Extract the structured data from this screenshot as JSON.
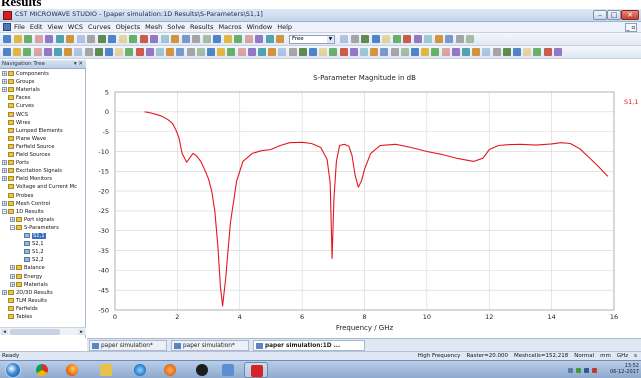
{
  "document_heading": "Results",
  "window": {
    "title": "CST MICROWAVE STUDIO - [paper simulation:1D Results\\S-Parameters\\S1,1]",
    "controls": {
      "minimize": "–",
      "maximize": "□",
      "close": "✕"
    }
  },
  "menu": {
    "items": [
      "File",
      "Edit",
      "View",
      "WCS",
      "Curves",
      "Objects",
      "Mesh",
      "Solve",
      "Results",
      "Macros",
      "Window",
      "Help"
    ],
    "restore_glyph": "_ ▫"
  },
  "toolbar": {
    "combo_value": "Free"
  },
  "navigation_tree": {
    "title": "Navigation Tree",
    "title_controls": "▾ ✕",
    "items": [
      {
        "label": "Components",
        "level": 0,
        "expander": "+",
        "icon": "folder"
      },
      {
        "label": "Groups",
        "level": 0,
        "expander": "+",
        "icon": "folder"
      },
      {
        "label": "Materials",
        "level": 0,
        "expander": "+",
        "icon": "folder"
      },
      {
        "label": "Faces",
        "level": 0,
        "expander": "",
        "icon": "folder"
      },
      {
        "label": "Curves",
        "level": 0,
        "expander": "",
        "icon": "folder"
      },
      {
        "label": "WCS",
        "level": 0,
        "expander": "",
        "icon": "folder"
      },
      {
        "label": "Wires",
        "level": 0,
        "expander": "",
        "icon": "folder"
      },
      {
        "label": "Lumped Elements",
        "level": 0,
        "expander": "",
        "icon": "folder"
      },
      {
        "label": "Plane Wave",
        "level": 0,
        "expander": "",
        "icon": "folder"
      },
      {
        "label": "Farfield Source",
        "level": 0,
        "expander": "",
        "icon": "folder"
      },
      {
        "label": "Field Sources",
        "level": 0,
        "expander": "",
        "icon": "folder"
      },
      {
        "label": "Ports",
        "level": 0,
        "expander": "+",
        "icon": "folder"
      },
      {
        "label": "Excitation Signals",
        "level": 0,
        "expander": "+",
        "icon": "folder"
      },
      {
        "label": "Field Monitors",
        "level": 0,
        "expander": "+",
        "icon": "folder"
      },
      {
        "label": "Voltage and Current Mc",
        "level": 0,
        "expander": "",
        "icon": "folder"
      },
      {
        "label": "Probes",
        "level": 0,
        "expander": "",
        "icon": "folder"
      },
      {
        "label": "Mesh Control",
        "level": 0,
        "expander": "+",
        "icon": "folder"
      },
      {
        "label": "1D Results",
        "level": 0,
        "expander": "−",
        "icon": "folder"
      },
      {
        "label": "Port signals",
        "level": 1,
        "expander": "+",
        "icon": "folder"
      },
      {
        "label": "S-Parameters",
        "level": 1,
        "expander": "−",
        "icon": "folder"
      },
      {
        "label": "S1,1",
        "level": 2,
        "expander": "",
        "icon": "leaf",
        "selected": true
      },
      {
        "label": "S2,1",
        "level": 2,
        "expander": "",
        "icon": "leaf"
      },
      {
        "label": "S1,2",
        "level": 2,
        "expander": "",
        "icon": "leaf"
      },
      {
        "label": "S2,2",
        "level": 2,
        "expander": "",
        "icon": "leaf"
      },
      {
        "label": "Balance",
        "level": 1,
        "expander": "+",
        "icon": "folder"
      },
      {
        "label": "Energy",
        "level": 1,
        "expander": "+",
        "icon": "folder"
      },
      {
        "label": "Materials",
        "level": 1,
        "expander": "+",
        "icon": "folder"
      },
      {
        "label": "2D/3D Results",
        "level": 0,
        "expander": "+",
        "icon": "folder"
      },
      {
        "label": "TLM Results",
        "level": 0,
        "expander": "",
        "icon": "folder"
      },
      {
        "label": "Farfields",
        "level": 0,
        "expander": "",
        "icon": "folder"
      },
      {
        "label": "Tables",
        "level": 0,
        "expander": "",
        "icon": "folder"
      }
    ],
    "scroll_left": "◂",
    "scroll_right": "▸"
  },
  "doc_tabs": [
    {
      "label": "paper simulation*",
      "active": false
    },
    {
      "label": "paper simulation*",
      "active": false
    },
    {
      "label": "paper simulation:1D ...",
      "active": true
    }
  ],
  "status": {
    "left": "Ready",
    "right": [
      "High Frequency",
      "Raster=20.000",
      "Meshcells=152,218",
      "Normal",
      "mm",
      "GHz",
      "s"
    ]
  },
  "taskbar": {
    "clock_time": "13:52",
    "clock_date": "06-12-2017"
  },
  "chart_data": {
    "type": "line",
    "title": "S-Parameter Magnitude in dB",
    "xlabel": "Frequency / GHz",
    "ylabel": "",
    "xlim": [
      0,
      16
    ],
    "ylim": [
      -50,
      5
    ],
    "xticks": [
      0,
      2,
      4,
      6,
      8,
      10,
      12,
      14,
      16
    ],
    "yticks": [
      5,
      0,
      -5,
      -10,
      -15,
      -20,
      -25,
      -30,
      -35,
      -40,
      -45,
      -50
    ],
    "grid": true,
    "legend_position": "top-right",
    "color": "#e0191f",
    "series": [
      {
        "name": "S1,1",
        "x": [
          0.95,
          1.1,
          1.3,
          1.5,
          1.7,
          1.85,
          1.95,
          2.05,
          2.15,
          2.3,
          2.4,
          2.5,
          2.6,
          2.75,
          2.9,
          3.0,
          3.1,
          3.2,
          3.3,
          3.38,
          3.45,
          3.55,
          3.7,
          3.9,
          4.1,
          4.4,
          4.7,
          5.0,
          5.3,
          5.6,
          6.0,
          6.3,
          6.6,
          6.8,
          6.9,
          6.96,
          7.02,
          7.1,
          7.2,
          7.35,
          7.5,
          7.6,
          7.7,
          7.8,
          7.9,
          8.0,
          8.2,
          8.5,
          9.0,
          9.5,
          10.0,
          10.5,
          11.0,
          11.5,
          11.8,
          12.0,
          12.3,
          12.6,
          13.0,
          13.5,
          14.0,
          14.3,
          14.6,
          14.9,
          15.2,
          15.5,
          15.8
        ],
        "values": [
          0.0,
          -0.2,
          -0.6,
          -1.1,
          -2.0,
          -3.0,
          -4.5,
          -6.5,
          -10.5,
          -12.7,
          -11.6,
          -10.5,
          -11.0,
          -12.5,
          -15.0,
          -17.0,
          -20.0,
          -25.0,
          -34.0,
          -44.0,
          -49.0,
          -42.0,
          -28.0,
          -17.5,
          -12.5,
          -10.5,
          -9.8,
          -9.5,
          -8.5,
          -7.8,
          -7.7,
          -8.0,
          -9.0,
          -12.0,
          -18.0,
          -37.0,
          -22.0,
          -12.5,
          -8.5,
          -8.2,
          -8.7,
          -11.0,
          -16.0,
          -19.0,
          -17.5,
          -14.5,
          -10.5,
          -8.5,
          -8.2,
          -9.0,
          -10.0,
          -10.8,
          -11.8,
          -12.5,
          -11.7,
          -9.5,
          -8.5,
          -8.3,
          -8.2,
          -8.4,
          -8.1,
          -7.8,
          -8.0,
          -9.3,
          -11.5,
          -13.8,
          -16.3
        ]
      }
    ]
  }
}
